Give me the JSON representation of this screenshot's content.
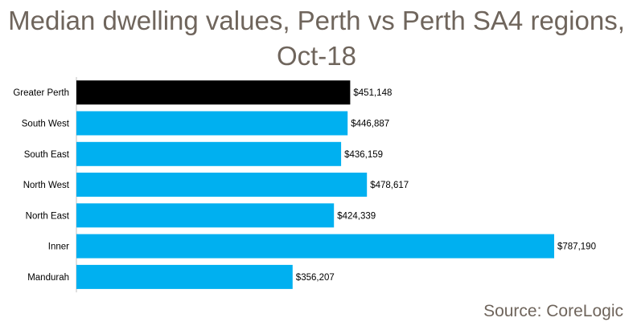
{
  "chart_title_line1": "Median dwelling values, Perth vs Perth SA4 regions,",
  "chart_title_line2": "Oct-18",
  "source": "Source: CoreLogic",
  "colors": {
    "highlight": "#000000",
    "bar": "#00b0f0",
    "title": "#6f655c",
    "axis": "#bfbfbf"
  },
  "chart_data": {
    "type": "bar",
    "orientation": "horizontal",
    "categories": [
      "Greater Perth",
      "South West",
      "South East",
      "North West",
      "North East",
      "Inner",
      "Mandurah"
    ],
    "values": [
      451148,
      446887,
      436159,
      478617,
      424339,
      787190,
      356207
    ],
    "value_labels": [
      "$451,148",
      "$446,887",
      "$436,159",
      "$478,617",
      "$424,339",
      "$787,190",
      "$356,207"
    ],
    "highlight_category": "Greater Perth",
    "xlim": [
      0,
      787190
    ],
    "grid": false,
    "legend": "none"
  }
}
